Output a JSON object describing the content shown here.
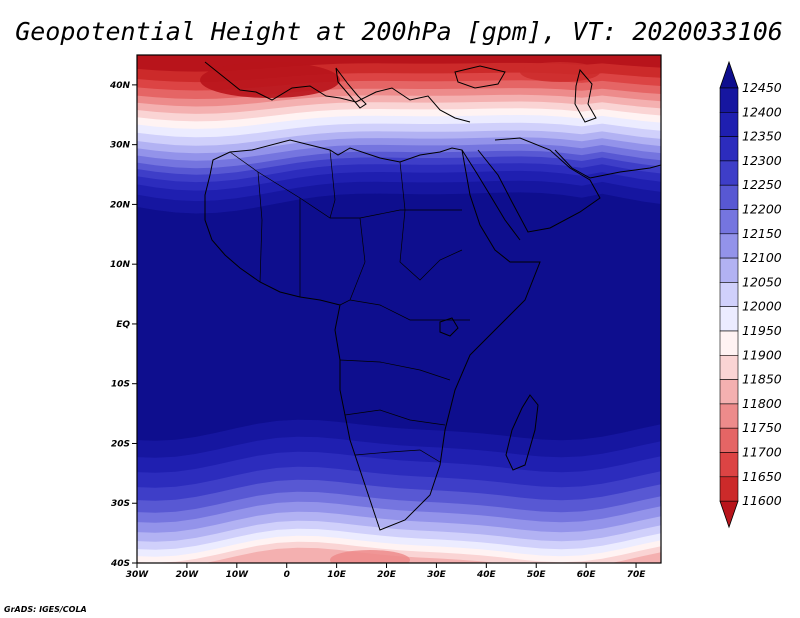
{
  "title": "Geopotential Height at 200hPa [gpm], VT: 2020033106",
  "credit": "GrADS: IGES/COLA",
  "map": {
    "lat_ticks": [
      "40N",
      "30N",
      "20N",
      "10N",
      "EQ",
      "10S",
      "20S",
      "30S",
      "40S"
    ],
    "lon_ticks": [
      "30W",
      "20W",
      "10W",
      "0",
      "10E",
      "20E",
      "30E",
      "40E",
      "50E",
      "60E",
      "70E"
    ],
    "extent": {
      "lon_min": -30,
      "lon_max": 75,
      "lat_min": -40,
      "lat_max": 45
    }
  },
  "chart_data": {
    "type": "heatmap",
    "title": "Geopotential Height at 200hPa [gpm], VT: 2020033106",
    "variable": "Geopotential Height",
    "level": "200hPa",
    "units": "gpm",
    "valid_time": "2020033106",
    "lon_range": [
      -30,
      75
    ],
    "lat_range": [
      -40,
      45
    ],
    "colorbar": {
      "levels": [
        11600,
        11650,
        11700,
        11750,
        11800,
        11850,
        11900,
        11950,
        12000,
        12050,
        12100,
        12150,
        12200,
        12250,
        12300,
        12350,
        12400,
        12450
      ],
      "labels": [
        "11600",
        "11650",
        "11700",
        "11750",
        "11800",
        "11850",
        "11900",
        "11950",
        "12000",
        "12050",
        "12100",
        "12150",
        "12200",
        "12250",
        "12300",
        "12350",
        "12400",
        "12450"
      ],
      "colors": [
        "#b8141b",
        "#cc2a2a",
        "#dc4444",
        "#e56565",
        "#ed8b8b",
        "#f4b0b0",
        "#fad4d4",
        "#fff3f3",
        "#ececff",
        "#d0d0fb",
        "#b2b2f3",
        "#9393ea",
        "#7575df",
        "#5858d3",
        "#3e3ec8",
        "#2c2cbd",
        "#1f1fb0",
        "#1616a0",
        "#0e0e8e"
      ]
    }
  }
}
